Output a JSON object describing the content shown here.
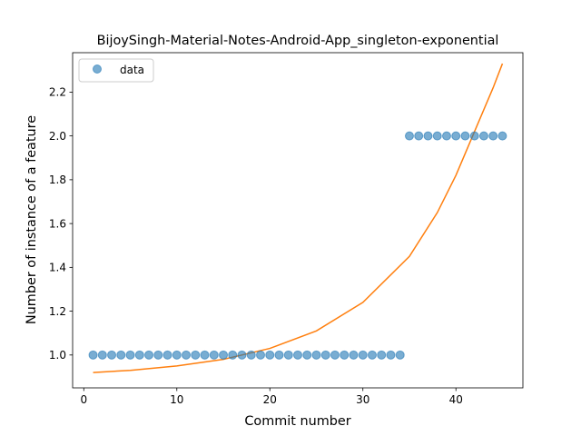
{
  "chart_data": {
    "type": "scatter",
    "title": "BijoySingh-Material-Notes-Android-App_singleton-exponential",
    "xlabel": "Commit number",
    "ylabel": "Number of instance of a feature",
    "xlim": [
      -1.2,
      47.2
    ],
    "ylim": [
      0.85,
      2.38
    ],
    "xticks": [
      0,
      10,
      20,
      30,
      40
    ],
    "yticks": [
      1.0,
      1.2,
      1.4,
      1.6,
      1.8,
      2.0,
      2.2
    ],
    "xtick_labels": [
      "0",
      "10",
      "20",
      "30",
      "40"
    ],
    "ytick_labels": [
      "1.0",
      "1.2",
      "1.4",
      "1.6",
      "1.8",
      "2.0",
      "2.2"
    ],
    "legend": {
      "position": "top-left",
      "entries": [
        "data"
      ]
    },
    "grid": false,
    "colors": {
      "data": "#1f77b4",
      "fit": "#ff7f0e"
    },
    "series": [
      {
        "name": "data",
        "kind": "scatter",
        "x": [
          1,
          2,
          3,
          4,
          5,
          6,
          7,
          8,
          9,
          10,
          11,
          12,
          13,
          14,
          15,
          16,
          17,
          18,
          19,
          20,
          21,
          22,
          23,
          24,
          25,
          26,
          27,
          28,
          29,
          30,
          31,
          32,
          33,
          34,
          35,
          36,
          37,
          38,
          39,
          40,
          41,
          42,
          43,
          44,
          45
        ],
        "y": [
          1,
          1,
          1,
          1,
          1,
          1,
          1,
          1,
          1,
          1,
          1,
          1,
          1,
          1,
          1,
          1,
          1,
          1,
          1,
          1,
          1,
          1,
          1,
          1,
          1,
          1,
          1,
          1,
          1,
          1,
          1,
          1,
          1,
          1,
          2,
          2,
          2,
          2,
          2,
          2,
          2,
          2,
          2,
          2,
          2
        ]
      },
      {
        "kind": "line",
        "x": [
          1,
          5,
          10,
          15,
          20,
          25,
          30,
          35,
          38,
          40,
          42,
          44,
          45
        ],
        "y": [
          0.92,
          0.93,
          0.95,
          0.98,
          1.03,
          1.11,
          1.24,
          1.45,
          1.65,
          1.82,
          2.02,
          2.22,
          2.33
        ]
      }
    ]
  }
}
